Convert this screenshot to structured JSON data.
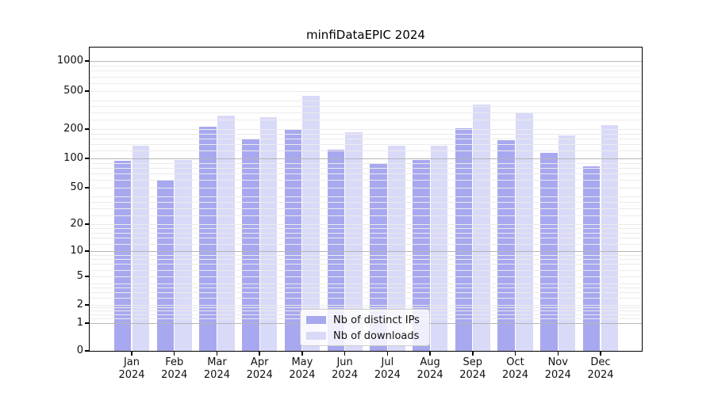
{
  "title": "minfiDataEPIC 2024",
  "colors": {
    "ips": "#a8a8f0",
    "downloads": "#d9d9f8",
    "major_grid": "#b6b6b6",
    "minor_grid": "#ebebeb",
    "axis": "#000000"
  },
  "legend": {
    "items": [
      {
        "label": "Nb of distinct IPs",
        "color_key": "ips"
      },
      {
        "label": "Nb of downloads",
        "color_key": "downloads"
      }
    ]
  },
  "chart_data": {
    "type": "bar",
    "title": "minfiDataEPIC 2024",
    "months": [
      "Jan",
      "Feb",
      "Mar",
      "Apr",
      "May",
      "Jun",
      "Jul",
      "Aug",
      "Sep",
      "Oct",
      "Nov",
      "Dec"
    ],
    "year_label": "2024",
    "series": [
      {
        "name": "Nb of distinct IPs",
        "color_key": "ips",
        "values": [
          95,
          60,
          212,
          157,
          195,
          122,
          89,
          97,
          205,
          154,
          113,
          83
        ]
      },
      {
        "name": "Nb of downloads",
        "color_key": "downloads",
        "values": [
          134,
          97,
          277,
          268,
          448,
          186,
          135,
          134,
          363,
          300,
          172,
          221
        ]
      }
    ],
    "yscale": "symlog",
    "y_ticks": [
      0,
      1,
      2,
      5,
      10,
      20,
      50,
      100,
      200,
      500,
      1000
    ],
    "y_major_gridlines": [
      1,
      10,
      100,
      1000
    ],
    "y_minor_multipliers": [
      1.2,
      1.4,
      1.6,
      1.8,
      2,
      2.5,
      3,
      3.5,
      4,
      5,
      6,
      7,
      8,
      9
    ],
    "ylim": [
      0,
      1363
    ],
    "grid": true,
    "legend_position": "lower center"
  }
}
